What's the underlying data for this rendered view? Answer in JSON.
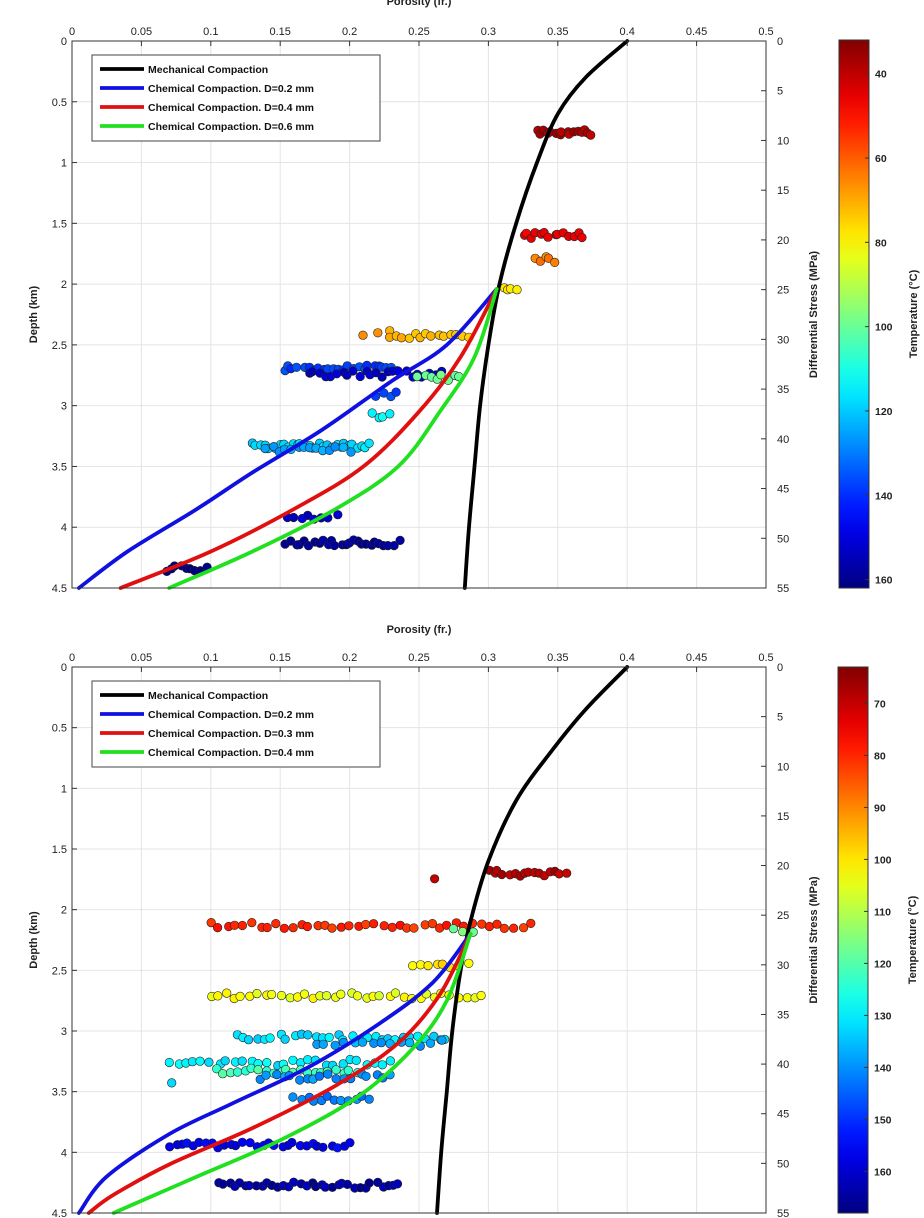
{
  "chart_data": [
    {
      "type": "scatter",
      "title": "",
      "xlabel": "Porosity (fr.)",
      "ylabel": "Depth (km)",
      "y2label": "Differential Stress (MPa)",
      "colorbar_label": "Temperature (°C)",
      "xlim": [
        0,
        0.5
      ],
      "ylim": [
        0,
        4.5
      ],
      "y2lim": [
        0,
        55
      ],
      "y_reversed": true,
      "grid": true,
      "legend_position": "top-left",
      "x_ticks": [
        "0",
        "0.05",
        "0.1",
        "0.15",
        "0.2",
        "0.25",
        "0.3",
        "0.35",
        "0.4",
        "0.45",
        "0.5"
      ],
      "y_ticks": [
        "0",
        "0.5",
        "1",
        "1.5",
        "2",
        "2.5",
        "3",
        "3.5",
        "4",
        "4.5"
      ],
      "y2_ticks": [
        "0",
        "5",
        "10",
        "15",
        "20",
        "25",
        "30",
        "35",
        "40",
        "45",
        "50",
        "55"
      ],
      "colorbar_range": [
        32,
        162
      ],
      "colorbar_ticks": [
        "40",
        "60",
        "80",
        "100",
        "120",
        "140",
        "160"
      ],
      "series": [
        {
          "name": "Mechanical Compaction",
          "color": "#000000",
          "points": [
            [
              0.4,
              0
            ],
            [
              0.37,
              0.3
            ],
            [
              0.35,
              0.6
            ],
            [
              0.335,
              1.0
            ],
            [
              0.32,
              1.5
            ],
            [
              0.308,
              2.0
            ],
            [
              0.3,
              2.5
            ],
            [
              0.294,
              3.0
            ],
            [
              0.29,
              3.5
            ],
            [
              0.286,
              4.0
            ],
            [
              0.283,
              4.5
            ]
          ]
        },
        {
          "name": "Chemical Compaction. D=0.2 mm",
          "color": "#1010e0",
          "points": [
            [
              0.306,
              2.04
            ],
            [
              0.27,
              2.5
            ],
            [
              0.23,
              2.8
            ],
            [
              0.18,
              3.2
            ],
            [
              0.13,
              3.55
            ],
            [
              0.09,
              3.85
            ],
            [
              0.04,
              4.2
            ],
            [
              0.005,
              4.5
            ]
          ]
        },
        {
          "name": "Chemical Compaction. D=0.4 mm",
          "color": "#e01010",
          "points": [
            [
              0.306,
              2.04
            ],
            [
              0.28,
              2.6
            ],
            [
              0.25,
              3.05
            ],
            [
              0.21,
              3.5
            ],
            [
              0.16,
              3.85
            ],
            [
              0.1,
              4.2
            ],
            [
              0.035,
              4.5
            ]
          ]
        },
        {
          "name": "Chemical Compaction. D=0.6 mm",
          "color": "#20e020",
          "points": [
            [
              0.306,
              2.04
            ],
            [
              0.29,
              2.6
            ],
            [
              0.265,
              3.05
            ],
            [
              0.235,
              3.5
            ],
            [
              0.19,
              3.85
            ],
            [
              0.13,
              4.2
            ],
            [
              0.07,
              4.5
            ]
          ]
        }
      ],
      "scatter_groups": [
        {
          "y": 0.75,
          "x_start": 0.335,
          "x_end": 0.375,
          "n": 16,
          "temperature": 38
        },
        {
          "y": 1.6,
          "x_start": 0.325,
          "x_end": 0.367,
          "n": 14,
          "temperature": 45
        },
        {
          "y": 1.8,
          "x_start": 0.335,
          "x_end": 0.348,
          "n": 5,
          "temperature": 65
        },
        {
          "y": 2.04,
          "x_start": 0.31,
          "x_end": 0.32,
          "n": 4,
          "temperature": 78
        },
        {
          "y": 2.4,
          "x_start": 0.21,
          "x_end": 0.228,
          "n": 3,
          "temperature": 68
        },
        {
          "y": 2.42,
          "x_start": 0.23,
          "x_end": 0.285,
          "n": 14,
          "temperature": 72
        },
        {
          "y": 2.69,
          "x_start": 0.152,
          "x_end": 0.235,
          "n": 24,
          "temperature": 138
        },
        {
          "y": 2.74,
          "x_start": 0.17,
          "x_end": 0.265,
          "n": 24,
          "temperature": 152
        },
        {
          "y": 2.77,
          "x_start": 0.25,
          "x_end": 0.28,
          "n": 8,
          "temperature": 100
        },
        {
          "y": 2.91,
          "x_start": 0.22,
          "x_end": 0.235,
          "n": 4,
          "temperature": 138
        },
        {
          "y": 3.08,
          "x_start": 0.215,
          "x_end": 0.23,
          "n": 4,
          "temperature": 112
        },
        {
          "y": 3.33,
          "x_start": 0.13,
          "x_end": 0.215,
          "n": 28,
          "temperature": 118
        },
        {
          "y": 3.36,
          "x_start": 0.14,
          "x_end": 0.2,
          "n": 14,
          "temperature": 125
        },
        {
          "y": 3.91,
          "x_start": 0.155,
          "x_end": 0.19,
          "n": 8,
          "temperature": 152
        },
        {
          "y": 4.13,
          "x_start": 0.155,
          "x_end": 0.235,
          "n": 26,
          "temperature": 158
        },
        {
          "y": 4.34,
          "x_start": 0.068,
          "x_end": 0.097,
          "n": 9,
          "temperature": 162
        }
      ]
    },
    {
      "type": "scatter",
      "title": "",
      "xlabel": "Porosity (fr.)",
      "ylabel": "Depth (km)",
      "y2label": "Differential Stress (MPa)",
      "colorbar_label": "Temperature (°C)",
      "xlim": [
        0,
        0.5
      ],
      "ylim": [
        0,
        4.5
      ],
      "y2lim": [
        0,
        55
      ],
      "y_reversed": true,
      "grid": true,
      "legend_position": "top-left",
      "x_ticks": [
        "0",
        "0.05",
        "0.1",
        "0.15",
        "0.2",
        "0.25",
        "0.3",
        "0.35",
        "0.4",
        "0.45",
        "0.5"
      ],
      "y_ticks": [
        "0",
        "0.5",
        "1",
        "1.5",
        "2",
        "2.5",
        "3",
        "3.5",
        "4",
        "4.5"
      ],
      "y2_ticks": [
        "0",
        "5",
        "10",
        "15",
        "20",
        "25",
        "30",
        "35",
        "40",
        "45",
        "50",
        "55"
      ],
      "colorbar_range": [
        63,
        168
      ],
      "colorbar_ticks": [
        "70",
        "80",
        "90",
        "100",
        "110",
        "120",
        "130",
        "140",
        "150",
        "160"
      ],
      "series": [
        {
          "name": "Mechanical Compaction",
          "color": "#000000",
          "points": [
            [
              0.4,
              0
            ],
            [
              0.37,
              0.35
            ],
            [
              0.345,
              0.7
            ],
            [
              0.32,
              1.1
            ],
            [
              0.3,
              1.6
            ],
            [
              0.287,
              2.1
            ],
            [
              0.28,
              2.5
            ],
            [
              0.274,
              3.0
            ],
            [
              0.27,
              3.5
            ],
            [
              0.266,
              4.0
            ],
            [
              0.263,
              4.5
            ]
          ]
        },
        {
          "name": "Chemical Compaction. D=0.2 mm",
          "color": "#1010e0",
          "points": [
            [
              0.287,
              2.2
            ],
            [
              0.26,
              2.6
            ],
            [
              0.22,
              2.95
            ],
            [
              0.17,
              3.3
            ],
            [
              0.115,
              3.6
            ],
            [
              0.07,
              3.85
            ],
            [
              0.025,
              4.2
            ],
            [
              0.005,
              4.5
            ]
          ]
        },
        {
          "name": "Chemical Compaction. D=0.3 mm",
          "color": "#e01010",
          "points": [
            [
              0.287,
              2.2
            ],
            [
              0.265,
              2.7
            ],
            [
              0.235,
              3.1
            ],
            [
              0.19,
              3.45
            ],
            [
              0.13,
              3.8
            ],
            [
              0.07,
              4.1
            ],
            [
              0.03,
              4.35
            ],
            [
              0.012,
              4.5
            ]
          ]
        },
        {
          "name": "Chemical Compaction. D=0.4 mm",
          "color": "#20e020",
          "points": [
            [
              0.287,
              2.2
            ],
            [
              0.27,
              2.75
            ],
            [
              0.245,
              3.15
            ],
            [
              0.205,
              3.55
            ],
            [
              0.15,
              3.9
            ],
            [
              0.09,
              4.2
            ],
            [
              0.04,
              4.45
            ],
            [
              0.03,
              4.5
            ]
          ]
        }
      ],
      "scatter_groups": [
        {
          "y": 1.7,
          "x_start": 0.3,
          "x_end": 0.355,
          "n": 16,
          "temperature": 68
        },
        {
          "y": 1.73,
          "x_start": 0.259,
          "x_end": 0.262,
          "n": 1,
          "temperature": 72
        },
        {
          "y": 2.13,
          "x_start": 0.1,
          "x_end": 0.33,
          "n": 40,
          "temperature": 80
        },
        {
          "y": 2.18,
          "x_start": 0.275,
          "x_end": 0.29,
          "n": 3,
          "temperature": 118
        },
        {
          "y": 2.45,
          "x_start": 0.245,
          "x_end": 0.285,
          "n": 8,
          "temperature": 100
        },
        {
          "y": 2.71,
          "x_start": 0.1,
          "x_end": 0.295,
          "n": 36,
          "temperature": 104
        },
        {
          "y": 3.05,
          "x_start": 0.118,
          "x_end": 0.27,
          "n": 30,
          "temperature": 132
        },
        {
          "y": 3.1,
          "x_start": 0.175,
          "x_end": 0.265,
          "n": 14,
          "temperature": 138
        },
        {
          "y": 3.26,
          "x_start": 0.07,
          "x_end": 0.23,
          "n": 28,
          "temperature": 130
        },
        {
          "y": 3.33,
          "x_start": 0.105,
          "x_end": 0.21,
          "n": 22,
          "temperature": 122
        },
        {
          "y": 3.38,
          "x_start": 0.135,
          "x_end": 0.23,
          "n": 18,
          "temperature": 140
        },
        {
          "y": 3.42,
          "x_start": 0.07,
          "x_end": 0.075,
          "n": 1,
          "temperature": 132
        },
        {
          "y": 3.56,
          "x_start": 0.16,
          "x_end": 0.215,
          "n": 12,
          "temperature": 142
        },
        {
          "y": 3.94,
          "x_start": 0.07,
          "x_end": 0.2,
          "n": 30,
          "temperature": 156
        },
        {
          "y": 4.27,
          "x_start": 0.105,
          "x_end": 0.235,
          "n": 34,
          "temperature": 164
        }
      ]
    }
  ]
}
